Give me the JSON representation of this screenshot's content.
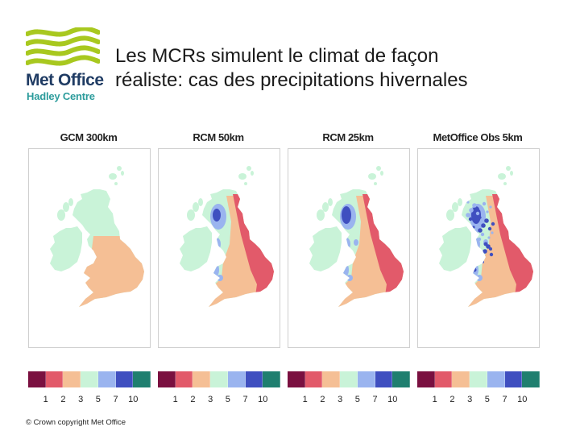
{
  "logo": {
    "brand": "Met Office",
    "subtitle": "Hadley Centre",
    "colors": {
      "waves": "#a8c81f",
      "brand": "#1f3b63",
      "subtitle": "#2d9c9c"
    }
  },
  "title": {
    "line1": "Les MCRs simulent le climat de façon",
    "line2": "réaliste: cas des precipitations hivernales"
  },
  "palette": [
    "#7a1040",
    "#e25a6a",
    "#f5bf95",
    "#c9f3d8",
    "#9ab4ef",
    "#3f4fc0",
    "#1f7f6f"
  ],
  "tick_labels": [
    "1",
    "2",
    "3",
    "5",
    "7",
    "10"
  ],
  "panels": [
    {
      "title": "GCM 300km",
      "detail": 0
    },
    {
      "title": "RCM 50km",
      "detail": 1
    },
    {
      "title": "RCM 25km",
      "detail": 2
    },
    {
      "title": "MetOffice Obs 5km",
      "detail": 3
    }
  ],
  "footer": {
    "copyright": "© Crown copyright   Met Office"
  }
}
